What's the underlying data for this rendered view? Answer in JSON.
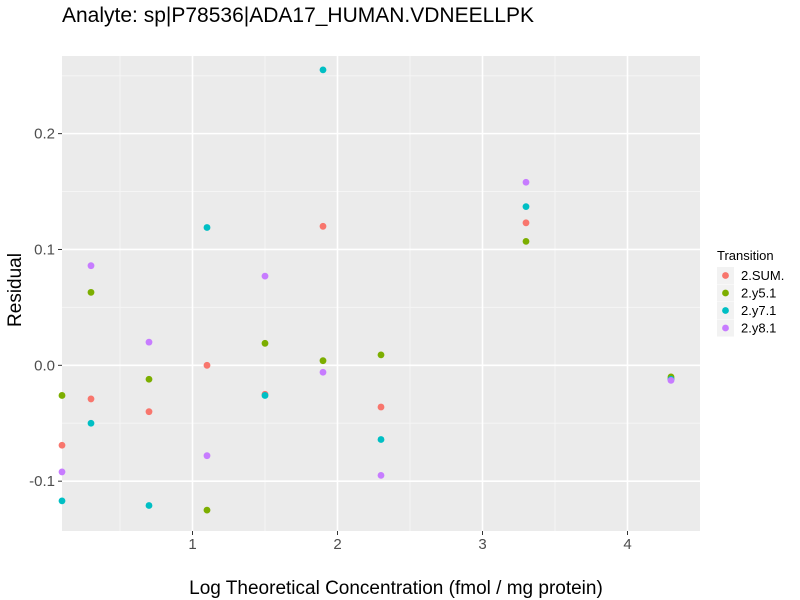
{
  "chart_data": {
    "type": "scatter",
    "title": "Analyte: sp|P78536|ADA17_HUMAN.VDNEELLPK",
    "xlabel": "Log Theoretical Concentration (fmol / mg protein)",
    "ylabel": "Residual",
    "xlim": [
      0.1,
      4.5
    ],
    "ylim": [
      -0.143,
      0.267
    ],
    "x_ticks": [
      {
        "value": 1,
        "label": "1"
      },
      {
        "value": 2,
        "label": "2"
      },
      {
        "value": 3,
        "label": "3"
      },
      {
        "value": 4,
        "label": "4"
      }
    ],
    "y_ticks": [
      {
        "value": -0.1,
        "label": "-0.1"
      },
      {
        "value": 0.0,
        "label": "0.0"
      },
      {
        "value": 0.1,
        "label": "0.1"
      },
      {
        "value": 0.2,
        "label": "0.2"
      }
    ],
    "grid": true,
    "legend": {
      "title": "Transition",
      "position": "right"
    },
    "series": [
      {
        "name": "2.SUM.",
        "color": "#F8766D",
        "points": [
          {
            "x": 0.1,
            "y": -0.069
          },
          {
            "x": 0.3,
            "y": -0.029
          },
          {
            "x": 0.7,
            "y": -0.04
          },
          {
            "x": 1.1,
            "y": 0.0
          },
          {
            "x": 1.5,
            "y": -0.025
          },
          {
            "x": 1.9,
            "y": 0.12
          },
          {
            "x": 2.3,
            "y": -0.036
          },
          {
            "x": 3.3,
            "y": 0.123
          },
          {
            "x": 4.3,
            "y": -0.011
          }
        ]
      },
      {
        "name": "2.y5.1",
        "color": "#7CAE00",
        "points": [
          {
            "x": 0.1,
            "y": -0.026
          },
          {
            "x": 0.3,
            "y": 0.063
          },
          {
            "x": 0.7,
            "y": -0.012
          },
          {
            "x": 1.1,
            "y": -0.125
          },
          {
            "x": 1.5,
            "y": 0.019
          },
          {
            "x": 1.9,
            "y": 0.004
          },
          {
            "x": 2.3,
            "y": 0.009
          },
          {
            "x": 3.3,
            "y": 0.107
          },
          {
            "x": 4.3,
            "y": -0.01
          }
        ]
      },
      {
        "name": "2.y7.1",
        "color": "#00BFC4",
        "points": [
          {
            "x": 0.1,
            "y": -0.117
          },
          {
            "x": 0.3,
            "y": -0.05
          },
          {
            "x": 0.7,
            "y": -0.121
          },
          {
            "x": 1.1,
            "y": 0.119
          },
          {
            "x": 1.5,
            "y": -0.026
          },
          {
            "x": 1.9,
            "y": 0.255
          },
          {
            "x": 2.3,
            "y": -0.064
          },
          {
            "x": 3.3,
            "y": 0.137
          },
          {
            "x": 4.3,
            "y": -0.012
          }
        ]
      },
      {
        "name": "2.y8.1",
        "color": "#C77CFF",
        "points": [
          {
            "x": 0.1,
            "y": -0.092
          },
          {
            "x": 0.3,
            "y": 0.086
          },
          {
            "x": 0.7,
            "y": 0.02
          },
          {
            "x": 1.1,
            "y": -0.078
          },
          {
            "x": 1.5,
            "y": 0.077
          },
          {
            "x": 1.9,
            "y": -0.006
          },
          {
            "x": 2.3,
            "y": -0.095
          },
          {
            "x": 3.3,
            "y": 0.158
          },
          {
            "x": 4.3,
            "y": -0.013
          }
        ]
      }
    ]
  }
}
